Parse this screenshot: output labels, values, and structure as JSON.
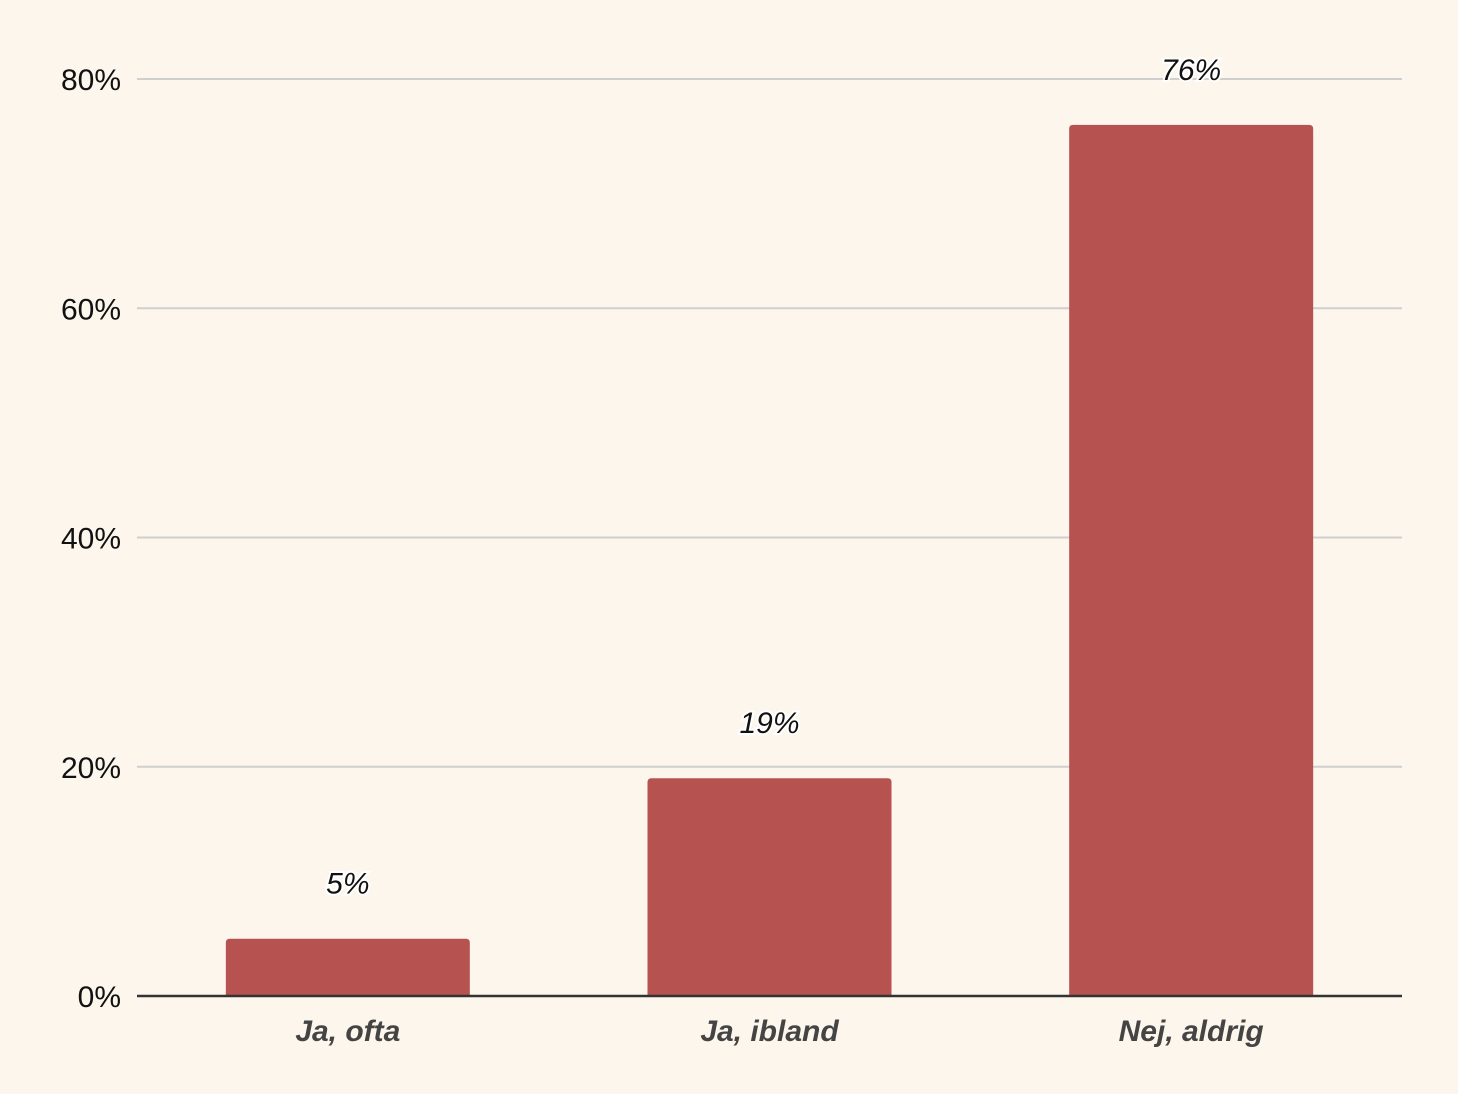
{
  "chart_data": {
    "type": "bar",
    "categories": [
      "Ja, ofta",
      "Ja, ibland",
      "Nej, aldrig"
    ],
    "values": [
      5,
      19,
      76
    ],
    "value_labels": [
      "5%",
      "19%",
      "76%"
    ],
    "title": "",
    "xlabel": "",
    "ylabel": "",
    "ylim": [
      0,
      80
    ],
    "yticks": [
      0,
      20,
      40,
      60,
      80
    ],
    "ytick_labels": [
      "0%",
      "20%",
      "40%",
      "60%",
      "80%"
    ],
    "grid": true,
    "legend": "none",
    "colors": {
      "bar": "#b65350",
      "background": "#fdf6ec",
      "grid": "#cfcfcf",
      "axis": "#333333"
    }
  }
}
